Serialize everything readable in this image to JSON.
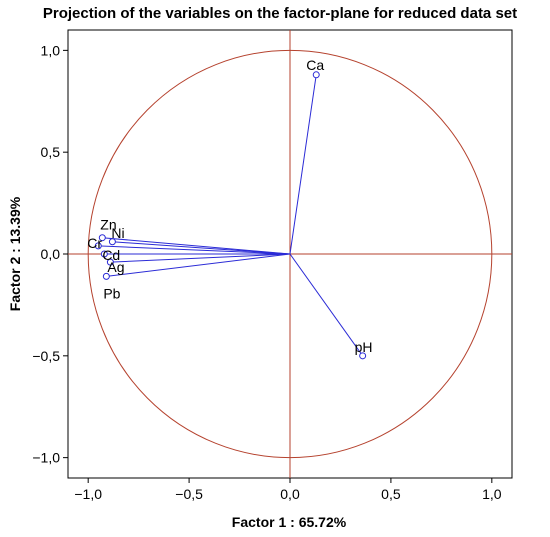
{
  "chart_data": {
    "type": "scatter",
    "title": "Projection of the variables on the factor-plane for reduced data set",
    "xlabel": "Factor 1 : 65.72%",
    "ylabel": "Factor 2 : 13.39%",
    "xlim": [
      -1.1,
      1.1
    ],
    "ylim": [
      -1.1,
      1.1
    ],
    "xticks": [
      -1.0,
      -0.5,
      0.0,
      0.5,
      1.0
    ],
    "yticks": [
      -1.0,
      -0.5,
      0.0,
      0.5,
      1.0
    ],
    "xtick_labels": [
      "−1,0",
      "−0,5",
      "0,0",
      "0,5",
      "1,0"
    ],
    "ytick_labels": [
      "−1,0",
      "−0,5",
      "0,0",
      "0,5",
      "1,0"
    ],
    "unit_circle": true,
    "grid": false,
    "points": [
      {
        "label": "Ca",
        "x": 0.13,
        "y": 0.88
      },
      {
        "label": "pH",
        "x": 0.36,
        "y": -0.5
      },
      {
        "label": "Zn",
        "x": -0.93,
        "y": 0.08
      },
      {
        "label": "Ni",
        "x": -0.88,
        "y": 0.06
      },
      {
        "label": "Cr",
        "x": -0.95,
        "y": 0.04
      },
      {
        "label": "Cd",
        "x": -0.92,
        "y": 0.0
      },
      {
        "label": "Ag",
        "x": -0.89,
        "y": -0.04
      },
      {
        "label": "Pb",
        "x": -0.91,
        "y": -0.11
      }
    ],
    "colors": {
      "vectors": "#2b2bd6",
      "circle": "#b5422e",
      "axes": "#b5422e",
      "frame": "#000000"
    }
  }
}
